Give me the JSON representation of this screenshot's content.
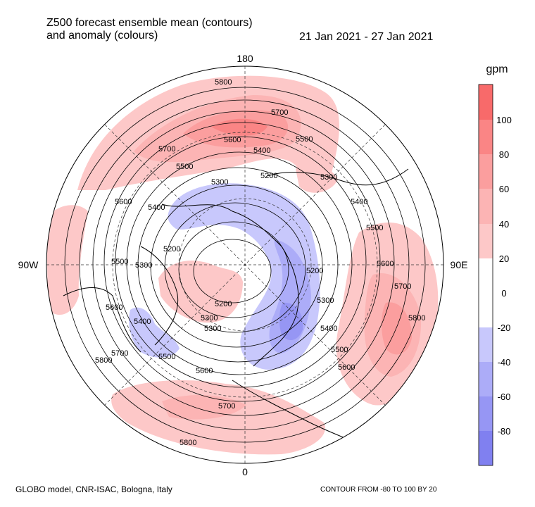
{
  "title_line1": "Z500 forecast ensemble mean (contours)",
  "title_line2": "and anomaly (colours)",
  "date_range": "21 Jan 2021 - 27 Jan 2021",
  "footer_left": "GLOBO model, CNR-ISAC, Bologna, Italy",
  "footer_right": "CONTOUR FROM -80 TO 100 BY 20",
  "longitude_labels": {
    "top": "180",
    "left": "90W",
    "right": "90E",
    "bottom": "0"
  },
  "colorbar": {
    "unit": "gpm",
    "ticks": [
      "100",
      "80",
      "60",
      "40",
      "20",
      "0",
      "-20",
      "-40",
      "-60",
      "-80"
    ],
    "colors": {
      "c100": "#f86a6a",
      "c80": "#fa8585",
      "c60": "#fb9e9e",
      "c40": "#fcb4b4",
      "c20": "#fdc8c8",
      "c0": "#ffffff",
      "cm20": "#c8c8fc",
      "cm40": "#acacf8",
      "cm60": "#9696f4",
      "cm80": "#8080f0"
    }
  },
  "contour_labels": [
    "5800",
    "5700",
    "5600",
    "5500",
    "5400",
    "5300",
    "5200",
    "5200",
    "5300",
    "5400",
    "5500",
    "5600",
    "5700",
    "5800",
    "5600",
    "5500",
    "5400",
    "5300",
    "5200",
    "5300",
    "5400",
    "5500",
    "5600",
    "5700",
    "5800",
    "5700",
    "5600",
    "5500",
    "5400",
    "5300",
    "5200",
    "5300",
    "5500",
    "5600",
    "5700",
    "5800"
  ]
}
